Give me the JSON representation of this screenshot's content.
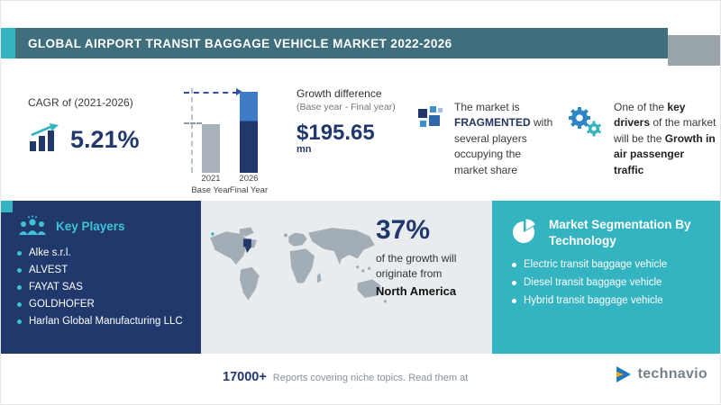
{
  "colors": {
    "teal": "#34b3c1",
    "navy": "#20386b",
    "header_bar": "#3f6e7d",
    "bar_blue": "#3e7cc8",
    "bar_gray": "#a9b2bb",
    "gray_tail": "#9aa4ab"
  },
  "header": {
    "title": "GLOBAL AIRPORT TRANSIT BAGGAGE VEHICLE MARKET 2022-2026"
  },
  "stats": {
    "cagr": {
      "label": "CAGR of (2021-2026)",
      "value": "5.21%",
      "icon": "bar-chart-growth-icon"
    },
    "growth": {
      "title": "Growth difference",
      "subtitle": "(Base year - Final year)",
      "value": "$195.65",
      "unit": "mn",
      "bars": [
        {
          "year": "2021",
          "label": "Base Year"
        },
        {
          "year": "2026",
          "label": "Final Year"
        }
      ]
    },
    "fragmented": {
      "icon": "fragmented-squares-icon",
      "text_before": "The market is",
      "highlight": "FRAGMENTED",
      "text_after": "with several players occupying the market share"
    },
    "driver": {
      "icon": "gears-icon",
      "text_1": "One of the",
      "bold_1": "key drivers",
      "text_2": "of the market will be the",
      "bold_2": "Growth in air passenger traffic"
    }
  },
  "key_players": {
    "title": "Key Players",
    "icon": "people-group-icon",
    "items": [
      "Alke s.r.l.",
      "ALVEST",
      "FAYAT SAS",
      "GOLDHOFER",
      "Harlan Global Manufacturing LLC"
    ]
  },
  "region": {
    "value": "37%",
    "text": "of the growth will originate from",
    "name": "North America",
    "map_icon": "world-map",
    "marker_icon": "north-america-marker-icon"
  },
  "segmentation": {
    "title": "Market Segmentation By Technology",
    "icon": "pie-chart-icon",
    "items": [
      "Electric transit baggage vehicle",
      "Diesel transit baggage vehicle",
      "Hybrid transit baggage vehicle"
    ]
  },
  "footer": {
    "count": "17000+",
    "text": "Reports covering niche topics. Read them at",
    "brand": "technavio",
    "brand_icon": "technavio-logo-icon"
  },
  "chart_data": {
    "type": "bar",
    "title": "Growth difference (Base year - Final year)",
    "categories": [
      "2021 Base Year",
      "2026 Final Year"
    ],
    "values": [
      60,
      100
    ],
    "values_note": "relative bar heights, value axis unlabeled; difference between final and base year = $195.65 mn",
    "ylim": [
      0,
      100
    ],
    "grid": false,
    "legend": "none",
    "annotations": [
      "CAGR (2021-2026): 5.21%",
      "$195.65 mn growth difference",
      "Market is FRAGMENTED",
      "37% of growth will originate from North America"
    ]
  }
}
